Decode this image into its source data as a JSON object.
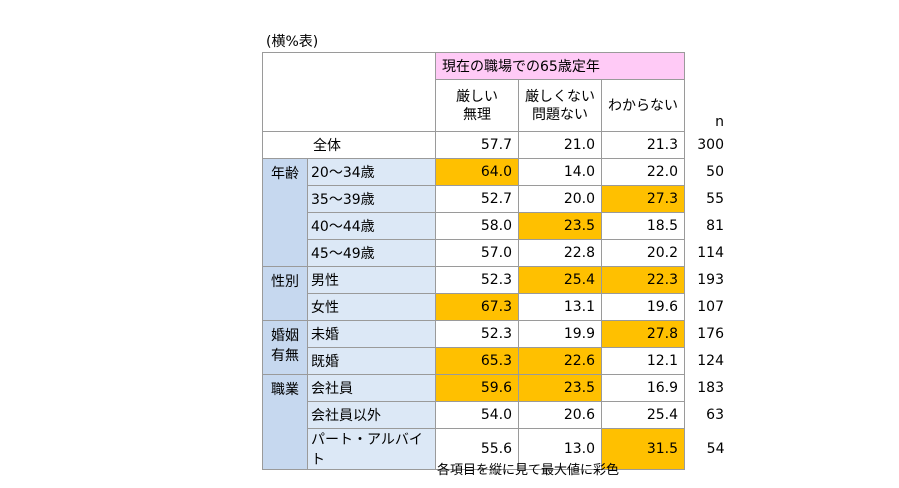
{
  "caption": "(横%表)",
  "note": "各項目を縦に見て最大値に彩色",
  "group_header": "現在の職場での65歳定年",
  "columns": [
    {
      "line1": "厳しい",
      "line2": "無理"
    },
    {
      "line1": "厳しくない",
      "line2": "問題ない"
    },
    {
      "line1": "わからない",
      "line2": ""
    }
  ],
  "n_label": "n",
  "total": {
    "label": "全体",
    "values": [
      "57.7",
      "21.0",
      "21.3"
    ],
    "n": "300"
  },
  "groups": [
    {
      "label_lines": [
        "年齢"
      ],
      "rows": [
        {
          "label": "20～34歳",
          "values": [
            "64.0",
            "14.0",
            "22.0"
          ],
          "highlight": [
            true,
            false,
            false
          ],
          "n": "50"
        },
        {
          "label": "35～39歳",
          "values": [
            "52.7",
            "20.0",
            "27.3"
          ],
          "highlight": [
            false,
            false,
            true
          ],
          "n": "55"
        },
        {
          "label": "40～44歳",
          "values": [
            "58.0",
            "23.5",
            "18.5"
          ],
          "highlight": [
            false,
            true,
            false
          ],
          "n": "81"
        },
        {
          "label": "45～49歳",
          "values": [
            "57.0",
            "22.8",
            "20.2"
          ],
          "highlight": [
            false,
            false,
            false
          ],
          "n": "114"
        }
      ]
    },
    {
      "label_lines": [
        "性別"
      ],
      "rows": [
        {
          "label": "男性",
          "values": [
            "52.3",
            "25.4",
            "22.3"
          ],
          "highlight": [
            false,
            true,
            true
          ],
          "n": "193"
        },
        {
          "label": "女性",
          "values": [
            "67.3",
            "13.1",
            "19.6"
          ],
          "highlight": [
            true,
            false,
            false
          ],
          "n": "107"
        }
      ]
    },
    {
      "label_lines": [
        "婚姻",
        "有無"
      ],
      "rows": [
        {
          "label": "未婚",
          "values": [
            "52.3",
            "19.9",
            "27.8"
          ],
          "highlight": [
            false,
            false,
            true
          ],
          "n": "176"
        },
        {
          "label": "既婚",
          "values": [
            "65.3",
            "22.6",
            "12.1"
          ],
          "highlight": [
            true,
            true,
            false
          ],
          "n": "124"
        }
      ]
    },
    {
      "label_lines": [
        "職業"
      ],
      "rows": [
        {
          "label": "会社員",
          "values": [
            "59.6",
            "23.5",
            "16.9"
          ],
          "highlight": [
            true,
            true,
            false
          ],
          "n": "183"
        },
        {
          "label": "会社員以外",
          "values": [
            "54.0",
            "20.6",
            "25.4"
          ],
          "highlight": [
            false,
            false,
            false
          ],
          "n": "63"
        },
        {
          "label": "パート・アルバイト",
          "values": [
            "55.6",
            "13.0",
            "31.5"
          ],
          "highlight": [
            false,
            false,
            true
          ],
          "n": "54"
        }
      ]
    }
  ],
  "colors": {
    "header_pink": "#ffcaf6",
    "group_blue": "#c6d8ef",
    "label_blue": "#dce8f6",
    "highlight": "#ffc000"
  }
}
